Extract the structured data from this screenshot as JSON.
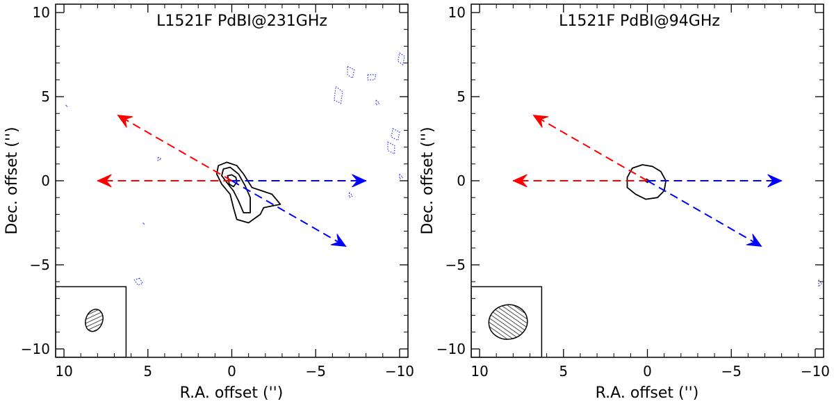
{
  "chart_data": [
    {
      "type": "contour",
      "title": "L1521F PdBI@231GHz",
      "xlabel": "R.A. offset ('')",
      "ylabel": "Dec. offset ('')",
      "xlim": [
        10.5,
        -10.5
      ],
      "ylim": [
        -10.5,
        10.5
      ],
      "xticks": [
        10,
        5,
        0,
        -5,
        -10
      ],
      "yticks": [
        10,
        5,
        0,
        -5,
        -10
      ],
      "xtick_labels": [
        "10",
        "5",
        "0",
        "−5",
        "−10"
      ],
      "ytick_labels": [
        "10",
        "5",
        "0",
        "−5",
        "−10"
      ],
      "arrows": [
        {
          "name": "red-arrow-west",
          "color": "#ff0000",
          "from": [
            0,
            0
          ],
          "to": [
            8,
            0
          ]
        },
        {
          "name": "red-arrow-northeast",
          "color": "#ff0000",
          "from": [
            0,
            0
          ],
          "to": [
            6.8,
            3.9
          ]
        },
        {
          "name": "blue-arrow-east",
          "color": "#0000ff",
          "from": [
            0,
            0
          ],
          "to": [
            -8,
            0
          ]
        },
        {
          "name": "blue-arrow-southwest",
          "color": "#0000ff",
          "from": [
            0,
            0
          ],
          "to": [
            -6.8,
            -3.9
          ]
        }
      ],
      "contours": [
        [
          [
            0.8,
            0.9
          ],
          [
            0.3,
            1.1
          ],
          [
            -0.3,
            0.9
          ],
          [
            -0.7,
            0.4
          ],
          [
            -1.2,
            -0.4
          ],
          [
            -2.4,
            -0.8
          ],
          [
            -2.9,
            -1.4
          ],
          [
            -2.4,
            -1.5
          ],
          [
            -1.9,
            -1.6
          ],
          [
            -1.7,
            -2.0
          ],
          [
            -1.0,
            -2.5
          ],
          [
            -0.3,
            -2.3
          ],
          [
            -0.1,
            -1.6
          ],
          [
            0.1,
            -0.8
          ],
          [
            0.6,
            -0.2
          ],
          [
            0.9,
            0.4
          ]
        ],
        [
          [
            0.5,
            0.7
          ],
          [
            0.1,
            0.8
          ],
          [
            -0.4,
            0.4
          ],
          [
            -0.8,
            -0.3
          ],
          [
            -1.1,
            -1.0
          ],
          [
            -1.1,
            -1.9
          ],
          [
            -0.7,
            -1.9
          ],
          [
            -0.4,
            -1.2
          ],
          [
            -0.1,
            -0.6
          ],
          [
            0.3,
            -0.1
          ],
          [
            0.6,
            0.3
          ]
        ],
        [
          [
            0.25,
            0.3
          ],
          [
            0.0,
            0.35
          ],
          [
            -0.25,
            0.2
          ],
          [
            -0.3,
            -0.1
          ],
          [
            -0.1,
            -0.35
          ],
          [
            0.15,
            -0.2
          ]
        ]
      ],
      "negative_contours": [
        [
          [
            -6.9,
            6.8
          ],
          [
            -7.3,
            6.6
          ],
          [
            -7.2,
            6.1
          ],
          [
            -6.9,
            6.3
          ]
        ],
        [
          [
            -6.2,
            5.6
          ],
          [
            -6.6,
            5.3
          ],
          [
            -6.5,
            4.6
          ],
          [
            -6.1,
            4.8
          ]
        ],
        [
          [
            -8.1,
            6.3
          ],
          [
            -8.6,
            6.3
          ],
          [
            -8.5,
            6.0
          ],
          [
            -8.1,
            6.0
          ]
        ],
        [
          [
            -10.0,
            7.6
          ],
          [
            -10.3,
            7.4
          ],
          [
            -10.2,
            6.9
          ],
          [
            -9.9,
            7.1
          ]
        ],
        [
          [
            -9.6,
            3.1
          ],
          [
            -10.0,
            2.9
          ],
          [
            -9.9,
            2.4
          ],
          [
            -9.5,
            2.6
          ]
        ],
        [
          [
            -9.3,
            2.3
          ],
          [
            -9.7,
            2.1
          ],
          [
            -9.7,
            1.6
          ],
          [
            -9.3,
            1.8
          ]
        ],
        [
          [
            -7.0,
            -0.7
          ],
          [
            -7.2,
            -0.9
          ],
          [
            -7.0,
            -1.0
          ]
        ],
        [
          [
            -8.6,
            4.8
          ],
          [
            -8.8,
            4.6
          ],
          [
            -8.6,
            4.5
          ]
        ],
        [
          [
            5.5,
            -5.8
          ],
          [
            5.8,
            -5.9
          ],
          [
            5.6,
            -6.2
          ],
          [
            5.3,
            -6.1
          ]
        ],
        [
          [
            4.4,
            1.4
          ],
          [
            4.2,
            1.3
          ],
          [
            4.4,
            1.2
          ]
        ],
        [
          [
            9.9,
            4.5
          ],
          [
            9.8,
            4.4
          ]
        ],
        [
          [
            5.3,
            -2.5
          ],
          [
            5.2,
            -2.6
          ]
        ],
        [
          [
            -10.0,
            0.4
          ],
          [
            -10.2,
            0.2
          ],
          [
            -10.0,
            0.1
          ]
        ]
      ],
      "beam": {
        "center": [
          8.2,
          -8.3
        ],
        "major": 1.35,
        "minor": 1.0,
        "pa_deg": 20
      },
      "beam_inset": {
        "x_range": [
          10.5,
          6.3
        ],
        "y_range": [
          -10.5,
          -6.3
        ]
      }
    },
    {
      "type": "contour",
      "title": "L1521F PdBI@94GHz",
      "xlabel": "R.A. offset ('')",
      "ylabel": "Dec. offset ('')",
      "xlim": [
        10.5,
        -10.5
      ],
      "ylim": [
        -10.5,
        10.5
      ],
      "xticks": [
        10,
        5,
        0,
        -5,
        -10
      ],
      "yticks": [
        10,
        5,
        0,
        -5,
        -10
      ],
      "xtick_labels": [
        "10",
        "5",
        "0",
        "−5",
        "−10"
      ],
      "ytick_labels": [
        "10",
        "5",
        "0",
        "−5",
        "−10"
      ],
      "arrows": [
        {
          "name": "red-arrow-west",
          "color": "#ff0000",
          "from": [
            0,
            0
          ],
          "to": [
            8,
            0
          ]
        },
        {
          "name": "red-arrow-northeast",
          "color": "#ff0000",
          "from": [
            0,
            0
          ],
          "to": [
            6.8,
            3.9
          ]
        },
        {
          "name": "blue-arrow-east",
          "color": "#0000ff",
          "from": [
            0,
            0
          ],
          "to": [
            -8,
            0
          ]
        },
        {
          "name": "blue-arrow-southwest",
          "color": "#0000ff",
          "from": [
            0,
            0
          ],
          "to": [
            -6.8,
            -3.9
          ]
        }
      ],
      "contours": [
        [
          [
            0.9,
            0.75
          ],
          [
            0.3,
            0.95
          ],
          [
            -0.3,
            0.85
          ],
          [
            -0.8,
            0.55
          ],
          [
            -1.1,
            0.0
          ],
          [
            -1.0,
            -0.6
          ],
          [
            -0.6,
            -1.0
          ],
          [
            0.1,
            -1.1
          ],
          [
            0.7,
            -0.8
          ],
          [
            1.2,
            -0.4
          ],
          [
            1.2,
            0.2
          ]
        ],
        [
          [
            0.15,
            0.0
          ],
          [
            0.05,
            0.1
          ],
          [
            -0.1,
            0.0
          ],
          [
            0.0,
            -0.1
          ]
        ]
      ],
      "negative_contours": [
        [
          [
            -10.2,
            -5.9
          ],
          [
            -10.4,
            -6.1
          ],
          [
            -10.2,
            -6.3
          ]
        ]
      ],
      "beam": {
        "center": [
          8.3,
          -8.4
        ],
        "major": 2.3,
        "minor": 2.05,
        "pa_deg": 80
      },
      "beam_inset": {
        "x_range": [
          10.5,
          6.3
        ],
        "y_range": [
          -10.5,
          -6.3
        ]
      }
    }
  ]
}
